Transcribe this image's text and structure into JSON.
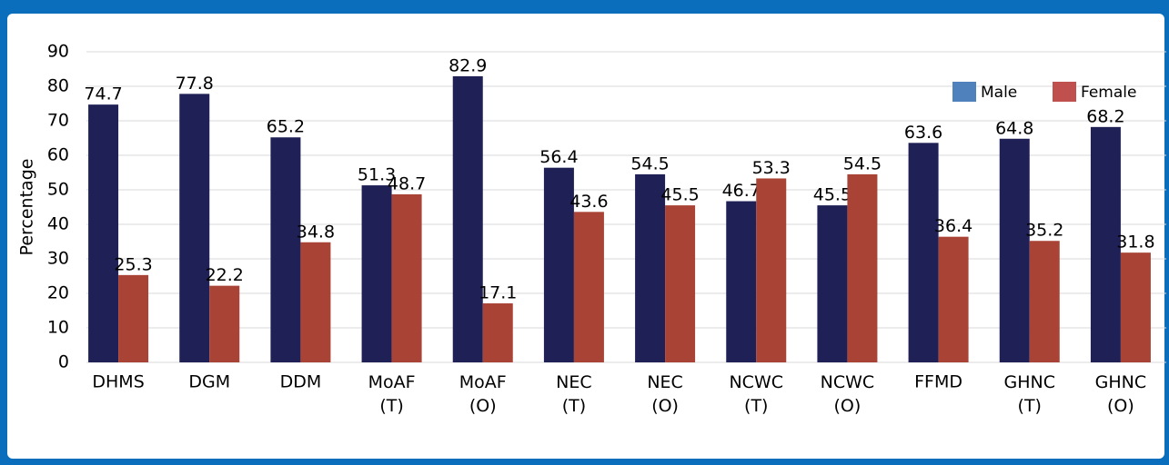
{
  "chart_data": {
    "type": "bar",
    "y_axis_label": "Percentage",
    "categories": [
      "DHMS",
      "DGM",
      "DDM",
      "MoAF (T)",
      "MoAF (O)",
      "NEC (T)",
      "NEC (O)",
      "NCWC (T)",
      "NCWC (O)",
      "FFMD",
      "GHNC (T)",
      "GHNC (O)"
    ],
    "series": [
      {
        "name": "Male",
        "color": "#1f2156",
        "legend_color": "#4f81bd",
        "values": [
          74.7,
          77.8,
          65.2,
          51.3,
          82.9,
          56.4,
          54.5,
          46.7,
          45.5,
          63.6,
          64.8,
          68.2
        ]
      },
      {
        "name": "Female",
        "color": "#a84336",
        "legend_color": "#c0504d",
        "values": [
          25.3,
          22.2,
          34.8,
          48.7,
          17.1,
          43.6,
          45.5,
          53.3,
          54.5,
          36.4,
          35.2,
          31.8
        ]
      }
    ],
    "ylim": [
      0,
      90
    ],
    "yticks": [
      0,
      10,
      20,
      30,
      40,
      50,
      60,
      70,
      80,
      90
    ],
    "grid": true,
    "legend": "top-right"
  }
}
